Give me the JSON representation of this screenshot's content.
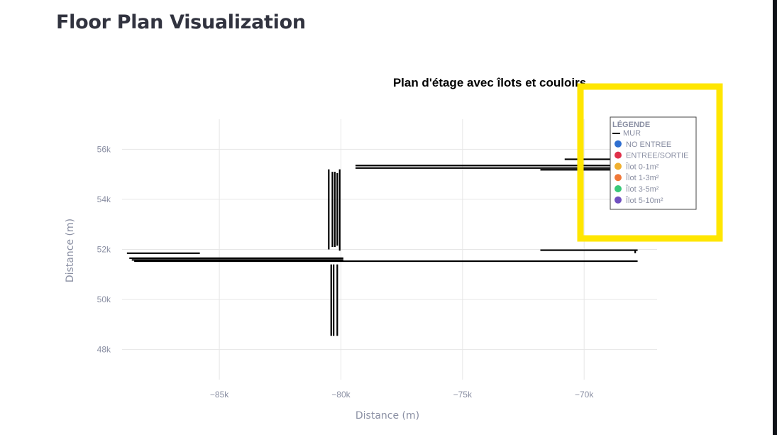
{
  "page": {
    "title": "Floor Plan Visualization"
  },
  "chart_data": {
    "type": "line",
    "title": "Plan d'étage avec îlots et couloirs",
    "xlabel": "Distance (m)",
    "ylabel": "Distance (m)",
    "xlim": [
      -89000,
      -67000
    ],
    "ylim": [
      46800,
      57200
    ],
    "x_ticks": [
      -85000,
      -80000,
      -75000,
      -70000
    ],
    "x_tick_labels": [
      "−85k",
      "−80k",
      "−75k",
      "−70k"
    ],
    "y_ticks": [
      48000,
      50000,
      52000,
      54000,
      56000
    ],
    "y_tick_labels": [
      "48k",
      "50k",
      "52k",
      "54k",
      "56k"
    ],
    "grid": true,
    "legend_position": "top-right",
    "legend": {
      "title": "LÉGENDE",
      "entries": [
        {
          "label": "MUR",
          "symbol": "line",
          "color": "#000000"
        },
        {
          "label": "NO ENTREE",
          "symbol": "circle",
          "color": "#2f6fd0"
        },
        {
          "label": "ENTREE/SORTIE",
          "symbol": "circle",
          "color": "#e0304a"
        },
        {
          "label": "Îlot 0-1m²",
          "symbol": "circle",
          "color": "#f0b030"
        },
        {
          "label": "Îlot 1-3m²",
          "symbol": "circle",
          "color": "#f07838"
        },
        {
          "label": "Îlot 3-5m²",
          "symbol": "circle",
          "color": "#38c878"
        },
        {
          "label": "Îlot 5-10m²",
          "symbol": "circle",
          "color": "#7050c0"
        }
      ]
    },
    "series": [
      {
        "label": "MUR",
        "color": "#000000",
        "segments": [
          {
            "x": [
              -88800,
              -85800
            ],
            "y": [
              51850,
              51850
            ]
          },
          {
            "x": [
              -88700,
              -79900
            ],
            "y": [
              51650,
              51650
            ]
          },
          {
            "x": [
              -88600,
              -79900
            ],
            "y": [
              51580,
              51580
            ]
          },
          {
            "x": [
              -88500,
              -67800
            ],
            "y": [
              51530,
              51530
            ]
          },
          {
            "x": [
              -80500,
              -80500
            ],
            "y": [
              55200,
              52000
            ]
          },
          {
            "x": [
              -80350,
              -80350
            ],
            "y": [
              55100,
              52100
            ]
          },
          {
            "x": [
              -80250,
              -80250
            ],
            "y": [
              55100,
              52100
            ]
          },
          {
            "x": [
              -80150,
              -80150
            ],
            "y": [
              55050,
              52150
            ]
          },
          {
            "x": [
              -80050,
              -80050
            ],
            "y": [
              55200,
              51950
            ]
          },
          {
            "x": [
              -80400,
              -80400
            ],
            "y": [
              51400,
              48550
            ]
          },
          {
            "x": [
              -80300,
              -80300
            ],
            "y": [
              51400,
              48550
            ]
          },
          {
            "x": [
              -80150,
              -80150
            ],
            "y": [
              51400,
              48550
            ]
          },
          {
            "x": [
              -79400,
              -68000
            ],
            "y": [
              55350,
              55350
            ]
          },
          {
            "x": [
              -79400,
              -68000
            ],
            "y": [
              55250,
              55250
            ]
          },
          {
            "x": [
              -71800,
              -67800
            ],
            "y": [
              55180,
              55180
            ]
          },
          {
            "x": [
              -70800,
              -67800
            ],
            "y": [
              55600,
              55600
            ]
          },
          {
            "x": [
              -71800,
              -67800
            ],
            "y": [
              51970,
              51970
            ]
          },
          {
            "x": [
              -67900,
              -67900
            ],
            "y": [
              51970,
              51850
            ]
          }
        ]
      }
    ]
  },
  "annotation": {
    "highlight_color": "#ffe600"
  }
}
